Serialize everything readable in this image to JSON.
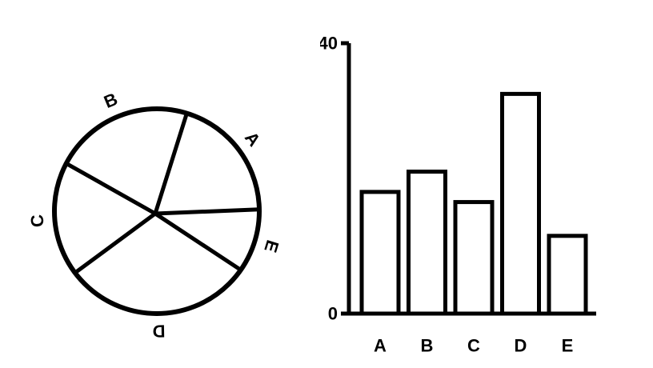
{
  "chart_data": [
    {
      "type": "pie",
      "categories": [
        "A",
        "B",
        "C",
        "D",
        "E"
      ],
      "values": [
        20,
        22,
        18,
        30,
        10
      ],
      "title": "",
      "legend": "none"
    },
    {
      "type": "bar",
      "categories": [
        "A",
        "B",
        "C",
        "D",
        "E"
      ],
      "values": [
        18,
        21,
        16.5,
        32.5,
        11.5
      ],
      "title": "",
      "xlabel": "",
      "ylabel": "",
      "ylim": [
        0,
        40
      ],
      "yticks": [
        "0",
        "40"
      ],
      "grid": false
    }
  ]
}
